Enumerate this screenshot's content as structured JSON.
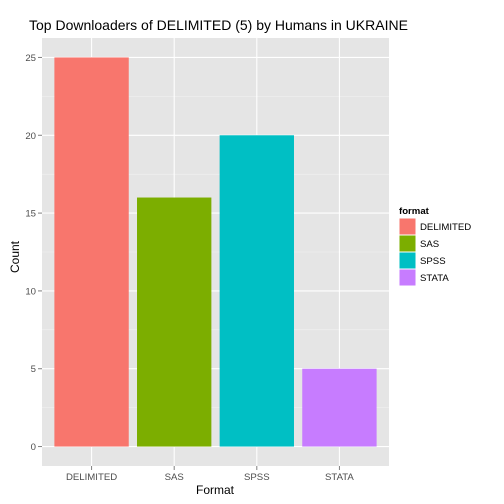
{
  "chart_data": {
    "type": "bar",
    "title": "Top Downloaders of DELIMITED (5) by Humans in UKRAINE",
    "xlabel": "Format",
    "ylabel": "Count",
    "categories": [
      "DELIMITED",
      "SAS",
      "SPSS",
      "STATA"
    ],
    "values": [
      25,
      16,
      20,
      5
    ],
    "colors": [
      "#F8766D",
      "#7CAE00",
      "#00BFC4",
      "#C77CFF"
    ],
    "ylim": [
      -1.25,
      26.25
    ],
    "yticks": [
      0,
      5,
      10,
      15,
      20,
      25
    ],
    "ytick_labels": [
      "0",
      "5",
      "10",
      "15",
      "20",
      "25"
    ],
    "grid": true,
    "background": "#E5E5E5",
    "legend": {
      "title": "format",
      "placement": "right",
      "items": [
        "DELIMITED",
        "SAS",
        "SPSS",
        "STATA"
      ]
    }
  }
}
